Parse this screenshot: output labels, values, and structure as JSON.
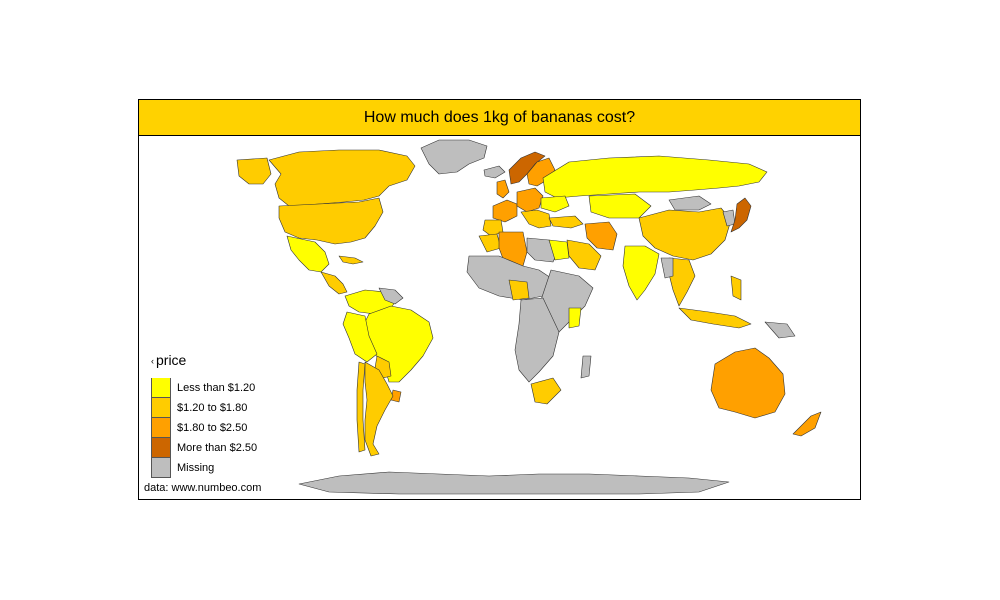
{
  "title": "How much does 1kg of bananas cost?",
  "source": "data: www.numbeo.com",
  "legend": {
    "title": "price",
    "items": [
      {
        "key": "lt120",
        "label": "Less than $1.20",
        "color": "#FFFF00"
      },
      {
        "key": "120to180",
        "label": "$1.20 to $1.80",
        "color": "#FFCC00"
      },
      {
        "key": "180to250",
        "label": "$1.80 to $2.50",
        "color": "#FFA000"
      },
      {
        "key": "gt250",
        "label": "More than $2.50",
        "color": "#CC6600"
      },
      {
        "key": "missing",
        "label": "Missing",
        "color": "#BEBEBE"
      }
    ]
  },
  "colors": {
    "title_bar": "#FFD200",
    "border": "#000000"
  }
}
